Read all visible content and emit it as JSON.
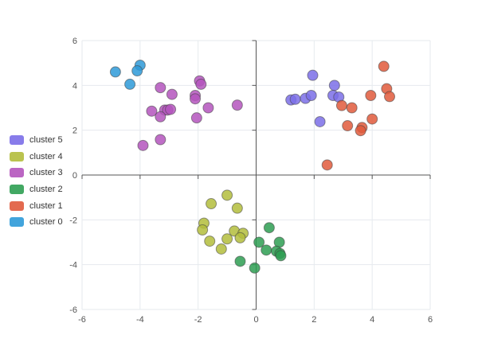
{
  "chart_data": {
    "type": "scatter",
    "xlim": [
      -6,
      6
    ],
    "ylim": [
      -6,
      6
    ],
    "x_ticks": [
      -6,
      -4,
      -2,
      0,
      2,
      4,
      6
    ],
    "y_ticks": [
      -6,
      -4,
      -2,
      0,
      2,
      4,
      6
    ],
    "grid": true,
    "legend_position": "left",
    "series": [
      {
        "name": "cluster 5",
        "color": "#7b6ee8",
        "points": [
          [
            1.95,
            4.45
          ],
          [
            2.7,
            4.0
          ],
          [
            1.2,
            3.35
          ],
          [
            1.35,
            3.38
          ],
          [
            1.7,
            3.42
          ],
          [
            1.9,
            3.55
          ],
          [
            2.65,
            3.55
          ],
          [
            2.85,
            3.48
          ],
          [
            2.2,
            2.38
          ]
        ]
      },
      {
        "name": "cluster 4",
        "color": "#b3bd3c",
        "points": [
          [
            -1.0,
            -0.9
          ],
          [
            -1.55,
            -1.28
          ],
          [
            -0.65,
            -1.48
          ],
          [
            -1.8,
            -2.15
          ],
          [
            -1.85,
            -2.45
          ],
          [
            -0.75,
            -2.5
          ],
          [
            -0.45,
            -2.6
          ],
          [
            -1.6,
            -2.95
          ],
          [
            -1.0,
            -2.85
          ],
          [
            -0.55,
            -2.8
          ],
          [
            -1.2,
            -3.3
          ]
        ]
      },
      {
        "name": "cluster 3",
        "color": "#b455bd",
        "points": [
          [
            -1.95,
            4.2
          ],
          [
            -1.9,
            4.05
          ],
          [
            -3.3,
            3.9
          ],
          [
            -2.9,
            3.6
          ],
          [
            -2.1,
            3.55
          ],
          [
            -2.1,
            3.4
          ],
          [
            -3.15,
            2.9
          ],
          [
            -3.05,
            2.9
          ],
          [
            -2.95,
            2.93
          ],
          [
            -1.65,
            3.0
          ],
          [
            -0.65,
            3.12
          ],
          [
            -3.6,
            2.85
          ],
          [
            -3.3,
            2.6
          ],
          [
            -2.05,
            2.55
          ],
          [
            -3.3,
            1.58
          ],
          [
            -3.9,
            1.32
          ]
        ]
      },
      {
        "name": "cluster 2",
        "color": "#2e9e52",
        "points": [
          [
            0.45,
            -2.35
          ],
          [
            0.1,
            -3.0
          ],
          [
            0.8,
            -3.0
          ],
          [
            0.35,
            -3.35
          ],
          [
            0.7,
            -3.4
          ],
          [
            0.82,
            -3.5
          ],
          [
            0.85,
            -3.6
          ],
          [
            -0.55,
            -3.85
          ],
          [
            -0.05,
            -4.15
          ]
        ]
      },
      {
        "name": "cluster 1",
        "color": "#e05a3c",
        "points": [
          [
            4.4,
            4.85
          ],
          [
            4.5,
            3.85
          ],
          [
            4.6,
            3.5
          ],
          [
            3.95,
            3.55
          ],
          [
            2.95,
            3.1
          ],
          [
            3.3,
            3.0
          ],
          [
            4.0,
            2.5
          ],
          [
            3.15,
            2.2
          ],
          [
            3.65,
            2.12
          ],
          [
            3.6,
            1.98
          ],
          [
            2.45,
            0.45
          ]
        ]
      },
      {
        "name": "cluster 0",
        "color": "#2e9ad8",
        "points": [
          [
            -4.85,
            4.6
          ],
          [
            -4.0,
            4.9
          ],
          [
            -4.1,
            4.65
          ],
          [
            -4.35,
            4.05
          ]
        ]
      }
    ]
  }
}
